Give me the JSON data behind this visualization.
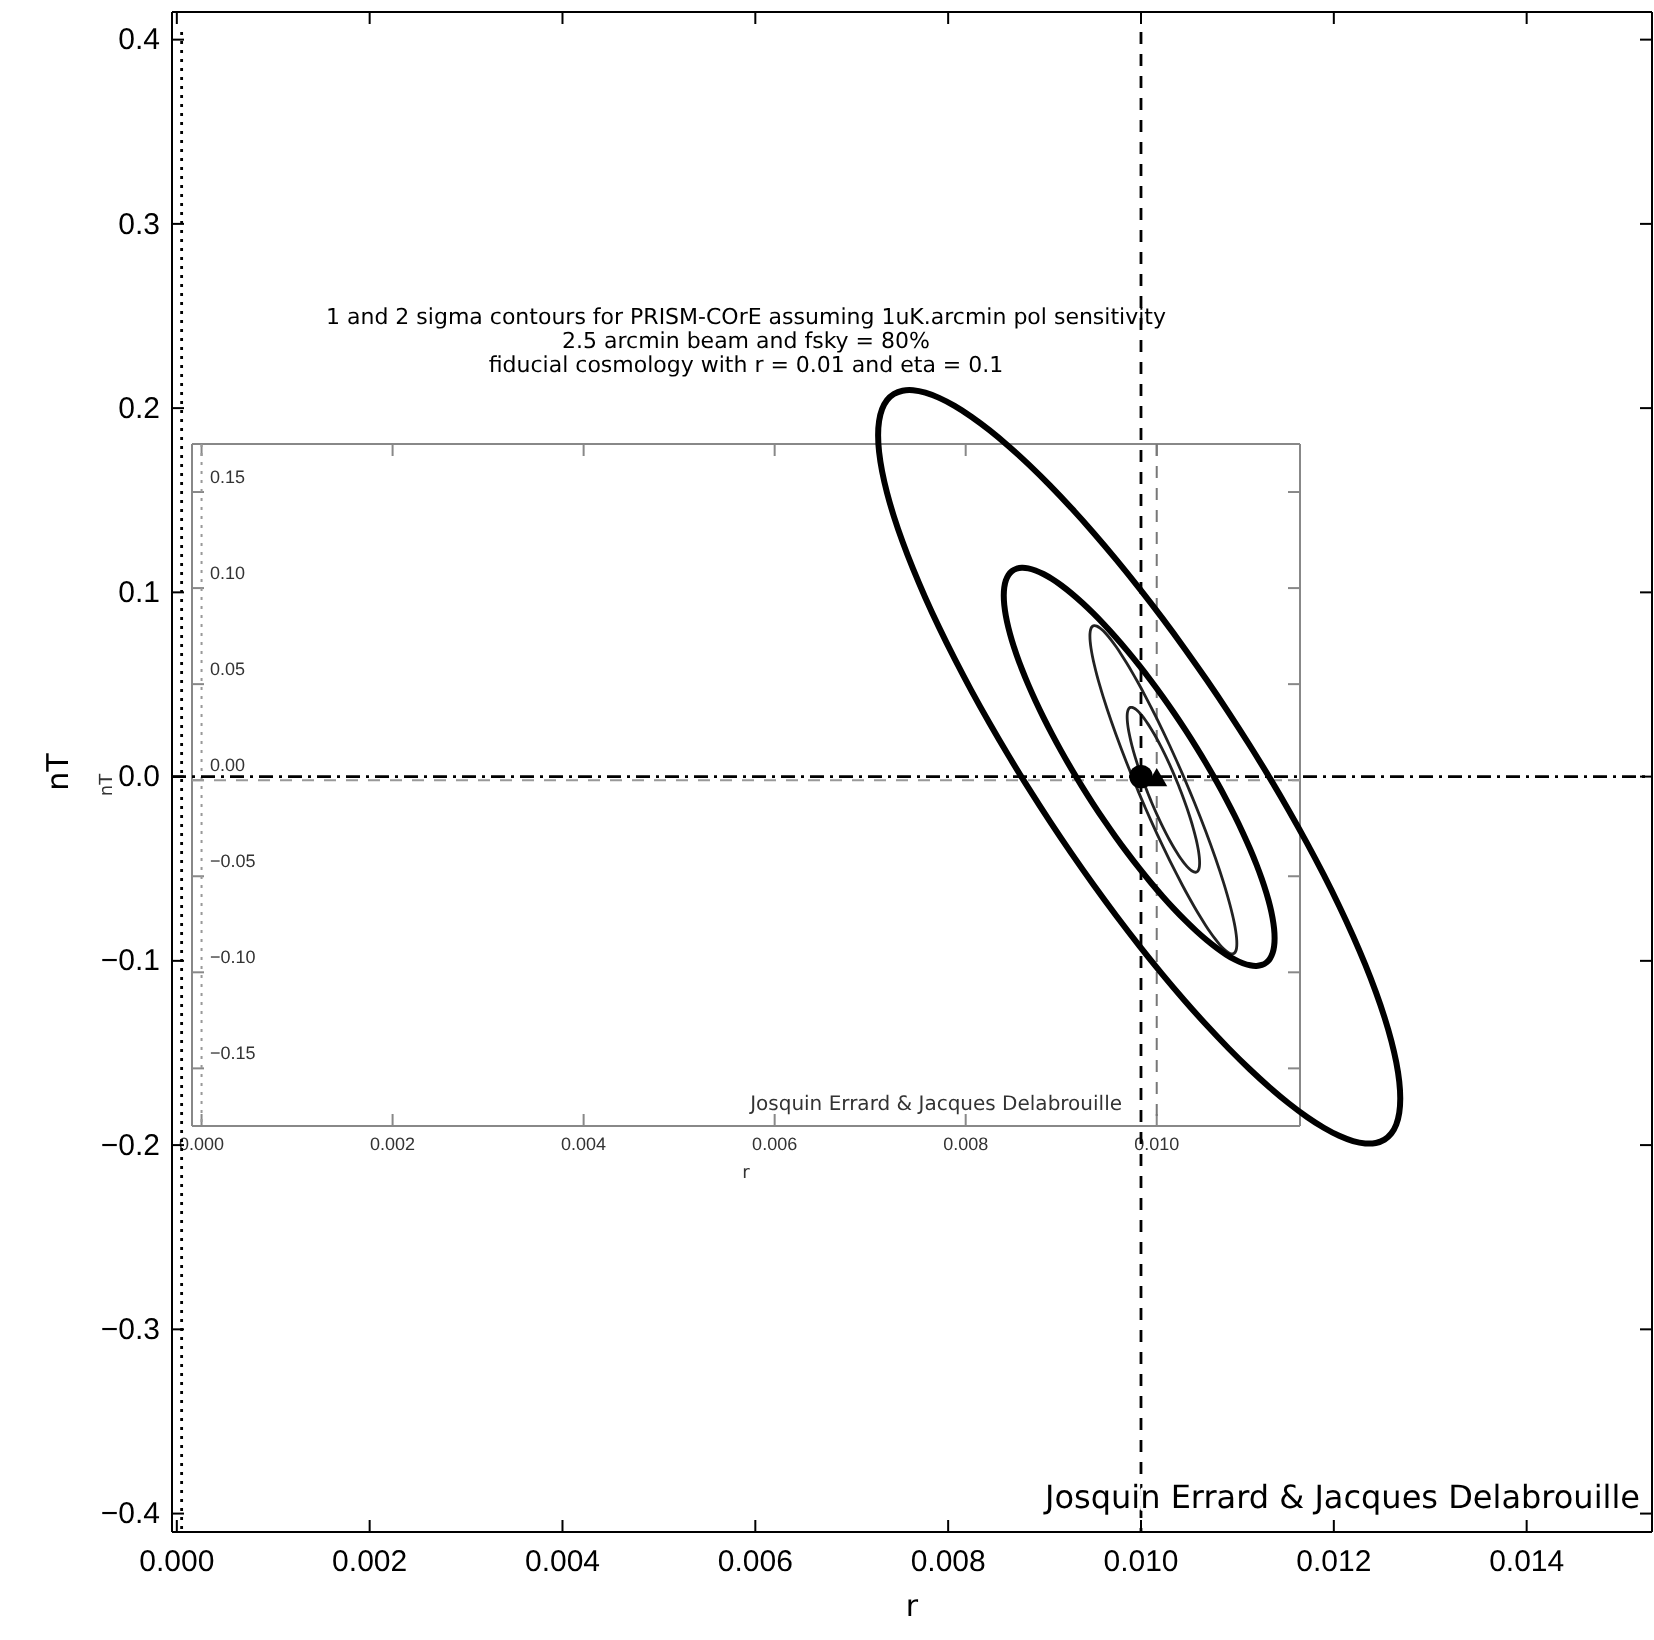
{
  "chart_data": [
    {
      "type": "scatter",
      "xlabel": "r",
      "ylabel": "nT",
      "xlim": [
        -5e-05,
        0.0153
      ],
      "ylim": [
        -0.41,
        0.415
      ],
      "xticks": [
        {
          "value": 0,
          "label": "0.000"
        },
        {
          "value": 0.002,
          "label": "0.002"
        },
        {
          "value": 0.004,
          "label": "0.004"
        },
        {
          "value": 0.006,
          "label": "0.006"
        },
        {
          "value": 0.008,
          "label": "0.008"
        },
        {
          "value": 0.01,
          "label": "0.010"
        },
        {
          "value": 0.012,
          "label": "0.012"
        },
        {
          "value": 0.014,
          "label": "0.014"
        }
      ],
      "yticks": [
        {
          "value": -0.4,
          "label": "−0.4"
        },
        {
          "value": -0.3,
          "label": "−0.3"
        },
        {
          "value": -0.2,
          "label": "−0.2"
        },
        {
          "value": -0.1,
          "label": "−0.1"
        },
        {
          "value": 0,
          "label": "0.0"
        },
        0.1,
        0.2,
        0.3,
        0.4
      ],
      "grid": false,
      "ref_lines": [
        {
          "axis": "x",
          "value": 5e-05,
          "color": "#000000",
          "line_style": "dotted"
        },
        {
          "axis": "x",
          "value": 0.01,
          "color": "#000000",
          "line_style": "dashed"
        },
        {
          "axis": "y",
          "value": 0,
          "color": "#000000",
          "line_style": "dashdot"
        }
      ],
      "annotations": [
        {
          "text": "Josquin Errard & Jacques Delabrouille"
        }
      ],
      "series": [
        {
          "color": "#000000",
          "marker": "circle",
          "x": [
            0.01
          ],
          "values": [
            0
          ]
        }
      ]
    },
    {
      "type": "scatter",
      "title": "1 and 2 sigma contours for PRISM-COrE assuming 1uK.arcmin pol sensitivity",
      "subtitle": "2.5 arcmin beam and fsky = 80%\nfiducial cosmology with r = 0.01 and eta = 0.1",
      "xlabel": "r",
      "ylabel": "nT",
      "xlim": [
        -0.0001,
        0.0115
      ],
      "ylim": [
        -0.18,
        0.175
      ],
      "xticks": [
        {
          "value": 0,
          "label": "0.000"
        },
        {
          "value": 0.002,
          "label": "0.002"
        },
        {
          "value": 0.004,
          "label": "0.004"
        },
        {
          "value": 0.006,
          "label": "0.006"
        },
        {
          "value": 0.008,
          "label": "0.008"
        },
        {
          "value": 0.01,
          "label": "0.010"
        }
      ],
      "yticks": [
        {
          "value": -0.15,
          "label": "−0.15"
        },
        {
          "value": -0.1,
          "label": "−0.10"
        },
        {
          "value": -0.05,
          "label": "−0.05"
        },
        {
          "value": 0,
          "label": "0.00"
        },
        {
          "value": 0.05,
          "label": "0.05"
        },
        {
          "value": 0.1,
          "label": "0.10"
        },
        0.15
      ],
      "grid": false,
      "ref_lines": [
        {
          "axis": "x",
          "value": 0,
          "color": "#999999",
          "line_style": "dotted"
        },
        {
          "axis": "x",
          "value": 0.01,
          "color": "#777777",
          "line_style": "dashed"
        },
        {
          "axis": "y",
          "value": 0,
          "color": "#999999",
          "line_style": "dashed"
        }
      ],
      "annotations": [
        {
          "text": "Josquin Errard & Jacques Delabrouille"
        }
      ],
      "series": [
        {
          "color": "#000000",
          "marker": "triangle",
          "x": [
            0.01
          ],
          "values": [
            0
          ]
        }
      ]
    }
  ]
}
